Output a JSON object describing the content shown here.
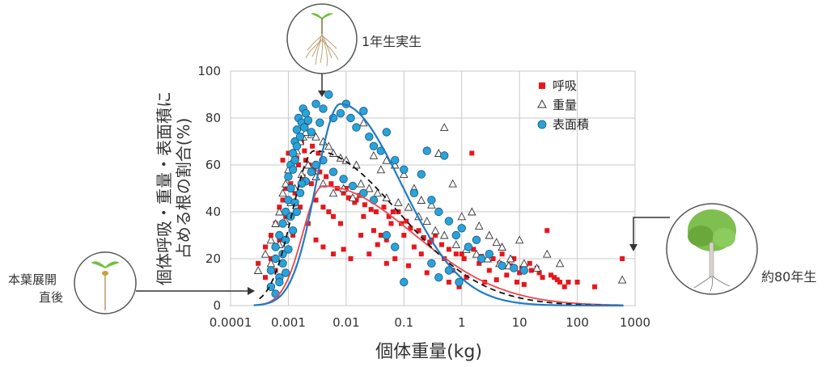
{
  "chart_data": {
    "type": "scatter",
    "x_scale": "log",
    "xlim": [
      0.0001,
      1000
    ],
    "ylim": [
      0,
      100
    ],
    "xlabel": "個体重量(kg)",
    "ylabel_line1": "個体呼吸・重量・表面積に",
    "ylabel_line2": "占める根の割合(%)",
    "xticks": [
      "0.0001",
      "0.001",
      "0.01",
      "0.1",
      "1",
      "10",
      "100",
      "1000"
    ],
    "yticks": [
      "0",
      "20",
      "40",
      "60",
      "80",
      "100"
    ],
    "grid": true,
    "legend_position": "top-right",
    "legend": [
      {
        "name": "呼吸",
        "marker": "square",
        "color": "#e8161c"
      },
      {
        "name": "重量",
        "marker": "triangle",
        "color": "#333333"
      },
      {
        "name": "表面積",
        "marker": "circle",
        "color": "#2aa3d9"
      }
    ],
    "annotations": {
      "seedling_1yr": "1年生実生",
      "after_leaf": "本葉展開\n直後",
      "tree_80yr": "約80年生"
    },
    "series": [
      {
        "name": "呼吸",
        "points": [
          [
            0.0003,
            18
          ],
          [
            0.0004,
            25
          ],
          [
            0.0005,
            30
          ],
          [
            0.0006,
            35
          ],
          [
            0.0007,
            42
          ],
          [
            0.0008,
            45
          ],
          [
            0.0009,
            50
          ],
          [
            0.001,
            55
          ],
          [
            0.0011,
            52
          ],
          [
            0.0012,
            58
          ],
          [
            0.0013,
            48
          ],
          [
            0.0015,
            60
          ],
          [
            0.0018,
            55
          ],
          [
            0.002,
            62
          ],
          [
            0.0025,
            52
          ],
          [
            0.003,
            45
          ],
          [
            0.004,
            42
          ],
          [
            0.005,
            40
          ],
          [
            0.006,
            38
          ],
          [
            0.008,
            35
          ],
          [
            0.01,
            50
          ],
          [
            0.015,
            45
          ],
          [
            0.02,
            38
          ],
          [
            0.03,
            32
          ],
          [
            0.04,
            30
          ],
          [
            0.05,
            28
          ],
          [
            0.06,
            35
          ],
          [
            0.08,
            40
          ],
          [
            0.1,
            30
          ],
          [
            0.15,
            25
          ],
          [
            0.2,
            22
          ],
          [
            0.3,
            28
          ],
          [
            0.5,
            20
          ],
          [
            0.7,
            15
          ],
          [
            1,
            22
          ],
          [
            1.5,
            65
          ],
          [
            2,
            18
          ],
          [
            3,
            15
          ],
          [
            5,
            22
          ],
          [
            8,
            20
          ],
          [
            10,
            14
          ],
          [
            15,
            18
          ],
          [
            20,
            16
          ],
          [
            30,
            32
          ],
          [
            40,
            12
          ],
          [
            50,
            10
          ],
          [
            100,
            10
          ],
          [
            200,
            8
          ],
          [
            600,
            20
          ],
          [
            0.0004,
            12
          ],
          [
            0.0005,
            20
          ],
          [
            0.0006,
            15
          ],
          [
            0.0007,
            28
          ],
          [
            0.0009,
            38
          ],
          [
            0.0012,
            30
          ],
          [
            0.0016,
            42
          ],
          [
            0.0022,
            35
          ],
          [
            0.003,
            28
          ],
          [
            0.004,
            25
          ],
          [
            0.006,
            22
          ],
          [
            0.009,
            24
          ],
          [
            0.012,
            20
          ],
          [
            0.018,
            30
          ],
          [
            0.025,
            22
          ],
          [
            0.035,
            26
          ],
          [
            0.05,
            18
          ],
          [
            0.07,
            20
          ],
          [
            0.12,
            17
          ],
          [
            0.25,
            14
          ],
          [
            0.4,
            12
          ],
          [
            0.6,
            10
          ],
          [
            0.9,
            8
          ],
          [
            1.2,
            12
          ],
          [
            2.5,
            10
          ],
          [
            4,
            11
          ],
          [
            6,
            13
          ],
          [
            9,
            10
          ],
          [
            12,
            9
          ],
          [
            25,
            12
          ],
          [
            60,
            8
          ],
          [
            0.0008,
            62
          ],
          [
            0.001,
            65
          ],
          [
            0.0014,
            63
          ],
          [
            0.0017,
            70
          ],
          [
            0.0019,
            66
          ],
          [
            0.0023,
            60
          ],
          [
            0.0028,
            58
          ],
          [
            0.0035,
            57
          ],
          [
            0.0045,
            55
          ],
          [
            0.0055,
            52
          ],
          [
            0.007,
            50
          ],
          [
            0.009,
            48
          ],
          [
            0.011,
            46
          ],
          [
            0.014,
            44
          ],
          [
            0.017,
            47
          ],
          [
            0.021,
            43
          ],
          [
            0.027,
            41
          ],
          [
            0.033,
            40
          ],
          [
            0.045,
            42
          ],
          [
            0.055,
            38
          ],
          [
            0.065,
            40
          ],
          [
            0.09,
            35
          ],
          [
            0.11,
            36
          ],
          [
            0.13,
            33
          ],
          [
            0.18,
            32
          ],
          [
            0.22,
            29
          ],
          [
            0.28,
            27
          ],
          [
            0.35,
            30
          ],
          [
            0.45,
            26
          ],
          [
            0.6,
            24
          ],
          [
            0.8,
            22
          ],
          [
            1.1,
            20
          ],
          [
            1.6,
            24
          ],
          [
            2.2,
            21
          ],
          [
            3.5,
            20
          ],
          [
            4.5,
            18
          ],
          [
            7,
            17
          ],
          [
            11,
            16
          ],
          [
            16,
            15
          ],
          [
            22,
            14
          ],
          [
            35,
            13
          ],
          [
            45,
            11
          ],
          [
            70,
            10
          ],
          [
            0.0021,
            78
          ],
          [
            0.0026,
            68
          ],
          [
            0.0033,
            65
          ]
        ]
      },
      {
        "name": "重量",
        "points": [
          [
            0.0003,
            15
          ],
          [
            0.0004,
            22
          ],
          [
            0.0005,
            28
          ],
          [
            0.0006,
            35
          ],
          [
            0.0007,
            40
          ],
          [
            0.0008,
            48
          ],
          [
            0.0009,
            52
          ],
          [
            0.001,
            58
          ],
          [
            0.0012,
            62
          ],
          [
            0.0014,
            66
          ],
          [
            0.0016,
            70
          ],
          [
            0.0018,
            72
          ],
          [
            0.002,
            74
          ],
          [
            0.0025,
            73
          ],
          [
            0.003,
            72
          ],
          [
            0.004,
            70
          ],
          [
            0.005,
            68
          ],
          [
            0.006,
            65
          ],
          [
            0.008,
            63
          ],
          [
            0.01,
            62
          ],
          [
            0.015,
            60
          ],
          [
            0.02,
            78
          ],
          [
            0.03,
            64
          ],
          [
            0.04,
            58
          ],
          [
            0.05,
            62
          ],
          [
            0.07,
            60
          ],
          [
            0.1,
            56
          ],
          [
            0.15,
            50
          ],
          [
            0.2,
            45
          ],
          [
            0.3,
            43
          ],
          [
            0.4,
            65
          ],
          [
            0.5,
            76
          ],
          [
            0.7,
            52
          ],
          [
            1,
            38
          ],
          [
            1.5,
            40
          ],
          [
            2,
            34
          ],
          [
            3,
            30
          ],
          [
            4,
            27
          ],
          [
            5,
            25
          ],
          [
            7,
            20
          ],
          [
            10,
            28
          ],
          [
            12,
            18
          ],
          [
            20,
            16
          ],
          [
            30,
            22
          ],
          [
            50,
            18
          ],
          [
            600,
            11
          ],
          [
            0.0005,
            18
          ],
          [
            0.0007,
            26
          ],
          [
            0.0009,
            36
          ],
          [
            0.0011,
            44
          ],
          [
            0.0013,
            50
          ],
          [
            0.0017,
            56
          ],
          [
            0.0022,
            60
          ],
          [
            0.003,
            55
          ],
          [
            0.004,
            52
          ],
          [
            0.006,
            48
          ],
          [
            0.009,
            50
          ],
          [
            0.013,
            46
          ],
          [
            0.018,
            52
          ],
          [
            0.025,
            50
          ],
          [
            0.035,
            48
          ],
          [
            0.05,
            46
          ],
          [
            0.08,
            44
          ],
          [
            0.12,
            42
          ],
          [
            0.18,
            38
          ],
          [
            0.25,
            36
          ],
          [
            0.35,
            32
          ],
          [
            0.5,
            30
          ],
          [
            0.8,
            26
          ],
          [
            1.2,
            24
          ],
          [
            1.8,
            22
          ],
          [
            2.8,
            20
          ],
          [
            4.5,
            18
          ],
          [
            6.5,
            17
          ]
        ]
      },
      {
        "name": "表面積",
        "points": [
          [
            0.0005,
            8
          ],
          [
            0.0005,
            15
          ],
          [
            0.0006,
            20
          ],
          [
            0.0006,
            25
          ],
          [
            0.0007,
            30
          ],
          [
            0.0007,
            12
          ],
          [
            0.0008,
            35
          ],
          [
            0.0008,
            22
          ],
          [
            0.0009,
            40
          ],
          [
            0.0009,
            28
          ],
          [
            0.001,
            45
          ],
          [
            0.001,
            55
          ],
          [
            0.0011,
            60
          ],
          [
            0.0011,
            50
          ],
          [
            0.0012,
            65
          ],
          [
            0.0012,
            58
          ],
          [
            0.0013,
            70
          ],
          [
            0.0013,
            62
          ],
          [
            0.0014,
            75
          ],
          [
            0.0014,
            68
          ],
          [
            0.0015,
            80
          ],
          [
            0.0016,
            72
          ],
          [
            0.0017,
            78
          ],
          [
            0.0018,
            84
          ],
          [
            0.0019,
            76
          ],
          [
            0.002,
            82
          ],
          [
            0.0022,
            79
          ],
          [
            0.0025,
            74
          ],
          [
            0.003,
            86
          ],
          [
            0.0035,
            78
          ],
          [
            0.004,
            84
          ],
          [
            0.005,
            90
          ],
          [
            0.006,
            80
          ],
          [
            0.008,
            82
          ],
          [
            0.01,
            86
          ],
          [
            0.012,
            80
          ],
          [
            0.015,
            76
          ],
          [
            0.02,
            83
          ],
          [
            0.025,
            72
          ],
          [
            0.03,
            68
          ],
          [
            0.04,
            66
          ],
          [
            0.05,
            74
          ],
          [
            0.07,
            62
          ],
          [
            0.1,
            58
          ],
          [
            0.15,
            48
          ],
          [
            0.2,
            56
          ],
          [
            0.25,
            66
          ],
          [
            0.3,
            45
          ],
          [
            0.4,
            40
          ],
          [
            0.5,
            64
          ],
          [
            0.6,
            36
          ],
          [
            0.8,
            30
          ],
          [
            1,
            33
          ],
          [
            1.3,
            25
          ],
          [
            1.8,
            28
          ],
          [
            2.2,
            20
          ],
          [
            3,
            22
          ],
          [
            5,
            17
          ],
          [
            8,
            16
          ],
          [
            12,
            15
          ],
          [
            0.0006,
            5
          ],
          [
            0.0007,
            10
          ],
          [
            0.0008,
            18
          ],
          [
            0.0009,
            14
          ],
          [
            0.001,
            24
          ],
          [
            0.0012,
            32
          ],
          [
            0.0014,
            40
          ],
          [
            0.0016,
            48
          ],
          [
            0.002,
            53
          ],
          [
            0.0025,
            57
          ],
          [
            0.003,
            60
          ],
          [
            0.004,
            62
          ],
          [
            0.006,
            57
          ],
          [
            0.009,
            54
          ],
          [
            0.013,
            51
          ],
          [
            0.02,
            48
          ],
          [
            0.03,
            45
          ],
          [
            0.05,
            30
          ],
          [
            0.07,
            25
          ],
          [
            0.1,
            10
          ],
          [
            0.3,
            18
          ],
          [
            0.4,
            12
          ],
          [
            0.6,
            15
          ],
          [
            0.9,
            10
          ],
          [
            0.0011,
            38
          ],
          [
            0.0013,
            44
          ],
          [
            0.0017,
            52
          ]
        ]
      }
    ],
    "fit_curves": [
      {
        "series": "呼吸",
        "style": "solid",
        "color": "#f0454a"
      },
      {
        "series": "重量",
        "style": "dashed",
        "color": "#111111"
      },
      {
        "series": "表面積",
        "style": "solid",
        "color": "#1f7bc4"
      }
    ]
  }
}
